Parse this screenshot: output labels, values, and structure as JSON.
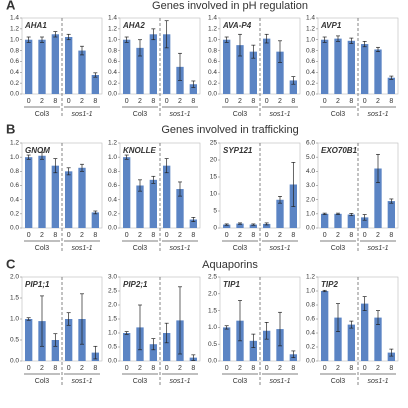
{
  "rows": [
    {
      "letter": "A",
      "title": "Genes involved in pH regulation"
    },
    {
      "letter": "B",
      "title": "Genes involved in trafficking"
    },
    {
      "letter": "C",
      "title": "Aquaporins"
    }
  ],
  "chart_data": [
    {
      "type": "bar",
      "title": "AHA1",
      "categories": [
        "0",
        "2",
        "8",
        "0",
        "2",
        "8"
      ],
      "groups": [
        "Col3",
        "sos1-1"
      ],
      "values": [
        1.0,
        1.0,
        1.1,
        1.05,
        0.8,
        0.35
      ],
      "errors": [
        0.05,
        0.05,
        0.05,
        0.05,
        0.08,
        0.04
      ],
      "color": "#5b84c4",
      "ylim": [
        0,
        1.4
      ],
      "yticks": [
        {
          "value": 0,
          "label": "0.0"
        },
        0.2,
        0.4,
        0.6,
        0.8,
        {
          "value": 1,
          "label": "1.0"
        },
        1.2,
        1.4
      ]
    },
    {
      "type": "bar",
      "title": "AHA2",
      "categories": [
        "0",
        "2",
        "8",
        "0",
        "2",
        "8"
      ],
      "groups": [
        "Col3",
        "sos1-1"
      ],
      "values": [
        1.0,
        0.85,
        1.1,
        1.1,
        0.5,
        0.18
      ],
      "errors": [
        0.05,
        0.15,
        0.1,
        0.25,
        0.25,
        0.06
      ],
      "color": "#5b84c4",
      "ylim": [
        0,
        1.4
      ],
      "yticks": [
        {
          "value": 0,
          "label": "0.0"
        },
        0.2,
        0.4,
        0.6,
        0.8,
        {
          "value": 1,
          "label": "1.0"
        },
        1.2,
        1.4
      ]
    },
    {
      "type": "bar",
      "title": "AVA-P4",
      "categories": [
        "0",
        "2",
        "8",
        "0",
        "2",
        "8"
      ],
      "groups": [
        "Col3",
        "sos1-1"
      ],
      "values": [
        1.0,
        0.9,
        0.78,
        1.02,
        0.78,
        0.25
      ],
      "errors": [
        0.05,
        0.2,
        0.12,
        0.08,
        0.2,
        0.07
      ],
      "color": "#5b84c4",
      "ylim": [
        0,
        1.4
      ],
      "yticks": [
        {
          "value": 0,
          "label": "0.0"
        },
        0.2,
        0.4,
        0.6,
        0.8,
        {
          "value": 1,
          "label": "1.0"
        },
        1.2,
        1.4
      ]
    },
    {
      "type": "bar",
      "title": "AVP1",
      "categories": [
        "0",
        "2",
        "8",
        "0",
        "2",
        "8"
      ],
      "groups": [
        "Col3",
        "sos1-1"
      ],
      "values": [
        1.0,
        1.02,
        0.98,
        0.92,
        0.82,
        0.3
      ],
      "errors": [
        0.05,
        0.05,
        0.05,
        0.05,
        0.04,
        0.03
      ],
      "color": "#5b84c4",
      "ylim": [
        0,
        1.4
      ],
      "yticks": [
        {
          "value": 0,
          "label": "0.0"
        },
        0.2,
        0.4,
        0.6,
        0.8,
        {
          "value": 1,
          "label": "1.0"
        },
        1.2,
        1.4
      ]
    },
    {
      "type": "bar",
      "title": "GNOM",
      "categories": [
        "0",
        "2",
        "8",
        "0",
        "2",
        "8"
      ],
      "groups": [
        "Col3",
        "sos1-1"
      ],
      "values": [
        1.0,
        1.02,
        0.88,
        0.8,
        0.85,
        0.22
      ],
      "errors": [
        0.03,
        0.05,
        0.1,
        0.05,
        0.05,
        0.02
      ],
      "color": "#5b84c4",
      "ylim": [
        0,
        1.2
      ],
      "yticks": [
        {
          "value": 0,
          "label": "0.0"
        },
        0.2,
        0.4,
        0.6,
        0.8,
        {
          "value": 1,
          "label": "1.0"
        },
        1.2
      ]
    },
    {
      "type": "bar",
      "title": "KNOLLE",
      "categories": [
        "0",
        "2",
        "8",
        "0",
        "2",
        "8"
      ],
      "groups": [
        "Col3",
        "sos1-1"
      ],
      "values": [
        1.0,
        0.6,
        0.68,
        0.88,
        0.55,
        0.12
      ],
      "errors": [
        0.03,
        0.08,
        0.05,
        0.1,
        0.1,
        0.03
      ],
      "color": "#5b84c4",
      "ylim": [
        0,
        1.2
      ],
      "yticks": [
        {
          "value": 0,
          "label": "0.0"
        },
        0.2,
        0.4,
        0.6,
        0.8,
        {
          "value": 1,
          "label": "1.0"
        },
        1.2
      ]
    },
    {
      "type": "bar",
      "title": "SYP121",
      "categories": [
        "0",
        "2",
        "8",
        "0",
        "2",
        "8"
      ],
      "groups": [
        "Col3",
        "sos1-1"
      ],
      "values": [
        1.0,
        1.3,
        1.0,
        1.2,
        8.3,
        12.8
      ],
      "errors": [
        0.2,
        0.2,
        0.2,
        0.3,
        1.0,
        6.5
      ],
      "color": "#5b84c4",
      "ylim": [
        0,
        25
      ],
      "yticks": [
        0,
        5,
        10,
        15,
        20,
        25
      ]
    },
    {
      "type": "bar",
      "title": "EXO70B1",
      "categories": [
        "0",
        "2",
        "8",
        "0",
        "2",
        "8"
      ],
      "groups": [
        "Col3",
        "sos1-1"
      ],
      "values": [
        1.0,
        1.0,
        0.95,
        0.75,
        4.2,
        1.9
      ],
      "errors": [
        0.05,
        0.05,
        0.08,
        0.2,
        1.0,
        0.15
      ],
      "color": "#5b84c4",
      "ylim": [
        0,
        6
      ],
      "yticks": [
        {
          "value": 0,
          "label": "0.0"
        },
        {
          "value": 1,
          "label": "1.0"
        },
        {
          "value": 2,
          "label": "2.0"
        },
        {
          "value": 3,
          "label": "3.0"
        },
        {
          "value": 4,
          "label": "4.0"
        },
        {
          "value": 5,
          "label": "5.0"
        },
        {
          "value": 6,
          "label": "6.0"
        }
      ]
    },
    {
      "type": "bar",
      "title": "PIP1;1",
      "categories": [
        "0",
        "2",
        "8",
        "0",
        "2",
        "8"
      ],
      "groups": [
        "Col3",
        "sos1-1"
      ],
      "values": [
        1.0,
        0.95,
        0.5,
        1.0,
        1.0,
        0.2
      ],
      "errors": [
        0.03,
        0.6,
        0.15,
        0.15,
        0.6,
        0.15
      ],
      "color": "#5b84c4",
      "ylim": [
        0,
        2
      ],
      "yticks": [
        {
          "value": 0,
          "label": "0.0"
        },
        0.5,
        {
          "value": 1,
          "label": "1.0"
        },
        1.5,
        {
          "value": 2,
          "label": "2.0"
        }
      ]
    },
    {
      "type": "bar",
      "title": "PIP2;1",
      "categories": [
        "0",
        "2",
        "8",
        "0",
        "2",
        "8"
      ],
      "groups": [
        "Col3",
        "sos1-1"
      ],
      "values": [
        1.0,
        1.2,
        0.6,
        1.0,
        1.45,
        0.12
      ],
      "errors": [
        0.05,
        0.8,
        0.2,
        0.35,
        1.2,
        0.1
      ],
      "color": "#5b84c4",
      "ylim": [
        0,
        3
      ],
      "yticks": [
        {
          "value": 0,
          "label": "0.0"
        },
        0.5,
        {
          "value": 1,
          "label": "1.0"
        },
        1.5,
        {
          "value": 2,
          "label": "2.0"
        },
        2.5,
        {
          "value": 3,
          "label": "3.0"
        }
      ]
    },
    {
      "type": "bar",
      "title": "TIP1",
      "categories": [
        "0",
        "2",
        "8",
        "0",
        "2",
        "8"
      ],
      "groups": [
        "Col3",
        "sos1-1"
      ],
      "values": [
        1.0,
        1.2,
        0.6,
        0.9,
        0.95,
        0.2
      ],
      "errors": [
        0.05,
        0.6,
        0.2,
        0.25,
        0.5,
        0.1
      ],
      "color": "#5b84c4",
      "ylim": [
        0,
        2.5
      ],
      "yticks": [
        {
          "value": 0,
          "label": "0.0"
        },
        0.5,
        {
          "value": 1,
          "label": "1.0"
        },
        1.5,
        {
          "value": 2,
          "label": "2.0"
        },
        2.5
      ]
    },
    {
      "type": "bar",
      "title": "TIP2",
      "categories": [
        "0",
        "2",
        "8",
        "0",
        "2",
        "8"
      ],
      "groups": [
        "Col3",
        "sos1-1"
      ],
      "values": [
        1.0,
        0.62,
        0.52,
        0.82,
        0.62,
        0.12
      ],
      "errors": [
        0.01,
        0.2,
        0.05,
        0.1,
        0.1,
        0.05
      ],
      "color": "#5b84c4",
      "ylim": [
        0,
        1.2
      ],
      "yticks": [
        {
          "value": 0,
          "label": "0.0"
        },
        0.2,
        0.4,
        0.6,
        0.8,
        {
          "value": 1,
          "label": "1.0"
        },
        1.2
      ]
    }
  ]
}
